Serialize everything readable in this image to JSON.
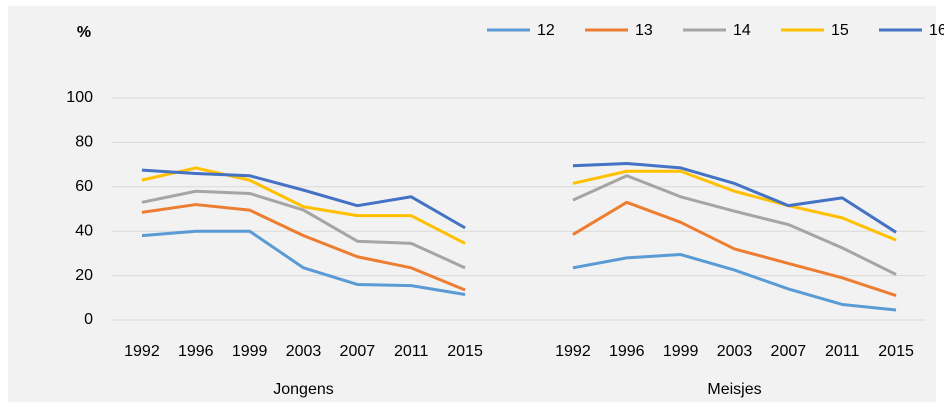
{
  "chart_data": {
    "type": "line",
    "ylabel": "%",
    "ylim": [
      0,
      100
    ],
    "yticks": [
      0,
      20,
      40,
      60,
      80,
      100
    ],
    "grid": true,
    "panels": [
      {
        "label": "Jongens",
        "categories": [
          "1992",
          "1996",
          "1999",
          "2003",
          "2007",
          "2011",
          "2015"
        ]
      },
      {
        "label": "Meisjes",
        "categories": [
          "1992",
          "1996",
          "1999",
          "2003",
          "2007",
          "2011",
          "2015"
        ]
      }
    ],
    "series": [
      {
        "name": "12",
        "color": "#5b9bd5",
        "values": [
          [
            38,
            40,
            40,
            23.5,
            16,
            15.5,
            11.5
          ],
          [
            23.5,
            28,
            29.5,
            22.5,
            14,
            7,
            4.5
          ]
        ]
      },
      {
        "name": "13",
        "color": "#ed7d31",
        "values": [
          [
            48.5,
            52,
            49.5,
            38,
            28.5,
            23.5,
            13.5
          ],
          [
            38.5,
            53,
            44,
            32,
            25.5,
            19,
            11
          ]
        ]
      },
      {
        "name": "14",
        "color": "#a5a5a5",
        "values": [
          [
            53,
            58,
            57,
            49.5,
            35.5,
            34.5,
            23.5
          ],
          [
            54,
            65,
            55.5,
            49,
            43,
            32.5,
            20.5
          ]
        ]
      },
      {
        "name": "15",
        "color": "#ffc000",
        "values": [
          [
            63,
            68.5,
            63,
            51,
            47,
            47,
            34.5
          ],
          [
            61.5,
            67,
            67,
            58,
            51.5,
            46,
            36
          ]
        ]
      },
      {
        "name": "16",
        "color": "#4472c4",
        "values": [
          [
            67.5,
            66,
            65,
            58.5,
            51.5,
            55.5,
            41.5
          ],
          [
            69.5,
            70.5,
            68.5,
            61.5,
            51.5,
            55,
            39.5
          ]
        ]
      }
    ]
  }
}
